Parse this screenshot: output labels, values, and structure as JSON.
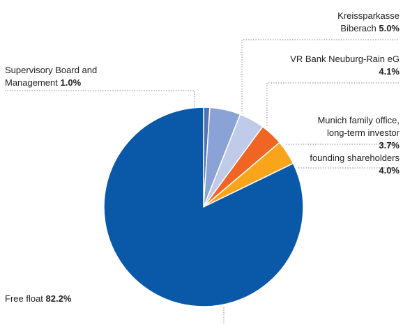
{
  "chart_data": {
    "type": "pie",
    "categories": [
      "Supervisory Board and Management",
      "Kreissparkasse Biberach",
      "VR Bank Neuburg-Rain eG",
      "Munich family office, long-term investor",
      "founding shareholders",
      "Free float"
    ],
    "values": [
      1.0,
      5.0,
      4.1,
      3.7,
      4.0,
      82.2
    ],
    "value_labels": [
      "1.0%",
      "5.0%",
      "4.1%",
      "3.7%",
      "4.0%",
      "82.2%"
    ],
    "colors": [
      "#4f73b9",
      "#8aa2d5",
      "#bfcbe8",
      "#f06524",
      "#f8a51c",
      "#0a58a8"
    ]
  }
}
